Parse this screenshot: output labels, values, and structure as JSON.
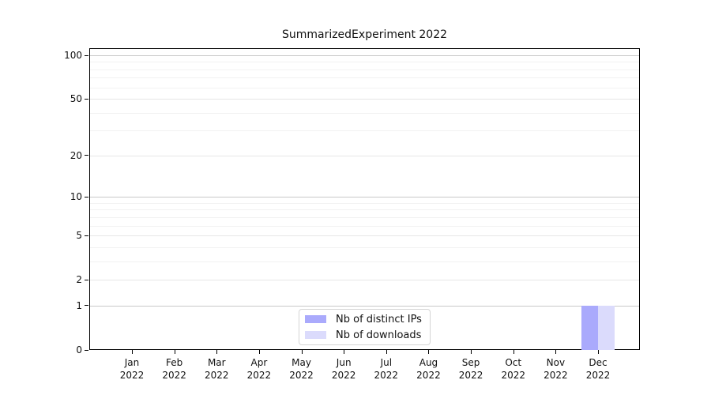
{
  "title": "SummarizedExperiment 2022",
  "colors": {
    "background": "#ffffff",
    "axis": "#000000",
    "text": "#111111",
    "grid_major": "#c8c8c8",
    "grid_mid": "#e6e6e6",
    "grid_minor": "#f2f2f2",
    "legend_border": "#d5d5d5"
  },
  "chart_data": {
    "type": "bar",
    "title": "SummarizedExperiment 2022",
    "categories": [
      "Jan",
      "Feb",
      "Mar",
      "Apr",
      "May",
      "Jun",
      "Jul",
      "Aug",
      "Sep",
      "Oct",
      "Nov",
      "Dec"
    ],
    "year_label": "2022",
    "series": [
      {
        "name": "Nb of distinct IPs",
        "color": "#aaaafc",
        "values": [
          0,
          0,
          0,
          0,
          0,
          0,
          0,
          0,
          0,
          0,
          0,
          1
        ]
      },
      {
        "name": "Nb of downloads",
        "color": "#dbdbfc",
        "values": [
          0,
          0,
          0,
          0,
          0,
          0,
          0,
          0,
          0,
          0,
          0,
          1
        ]
      }
    ],
    "xlabel": "",
    "ylabel": "",
    "y_scale": "log1p",
    "y_ticks": [
      0,
      1,
      2,
      5,
      10,
      20,
      50,
      100
    ],
    "y_minor_gridlines": [
      3,
      4,
      6,
      7,
      8,
      9,
      30,
      40,
      60,
      70,
      80,
      90
    ],
    "ylim": [
      0,
      115
    ],
    "grid": true,
    "legend_position": "bottom-center"
  }
}
